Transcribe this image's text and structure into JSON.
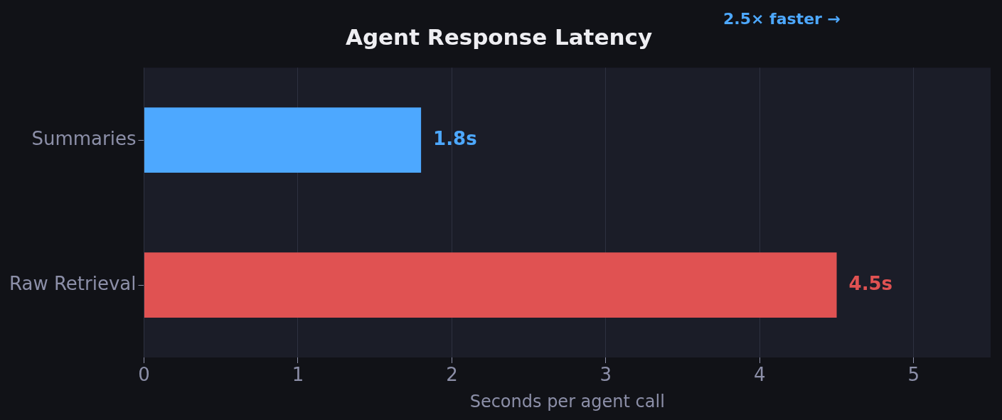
{
  "chart_data": {
    "type": "bar",
    "orientation": "horizontal",
    "title": "Agent Response Latency",
    "xlabel": "Seconds per agent call",
    "categories": [
      "Summaries",
      "Raw Retrieval"
    ],
    "values": [
      1.8,
      4.5
    ],
    "colors": [
      "#4da8ff",
      "#e05252"
    ],
    "value_labels": [
      "1.8s",
      "4.5s"
    ],
    "xlim": [
      0,
      5.5
    ],
    "xticks": [
      0,
      1,
      2,
      3,
      4,
      5
    ],
    "grid": "x",
    "legend": false,
    "annotations": [
      "2.5× faster →"
    ]
  }
}
